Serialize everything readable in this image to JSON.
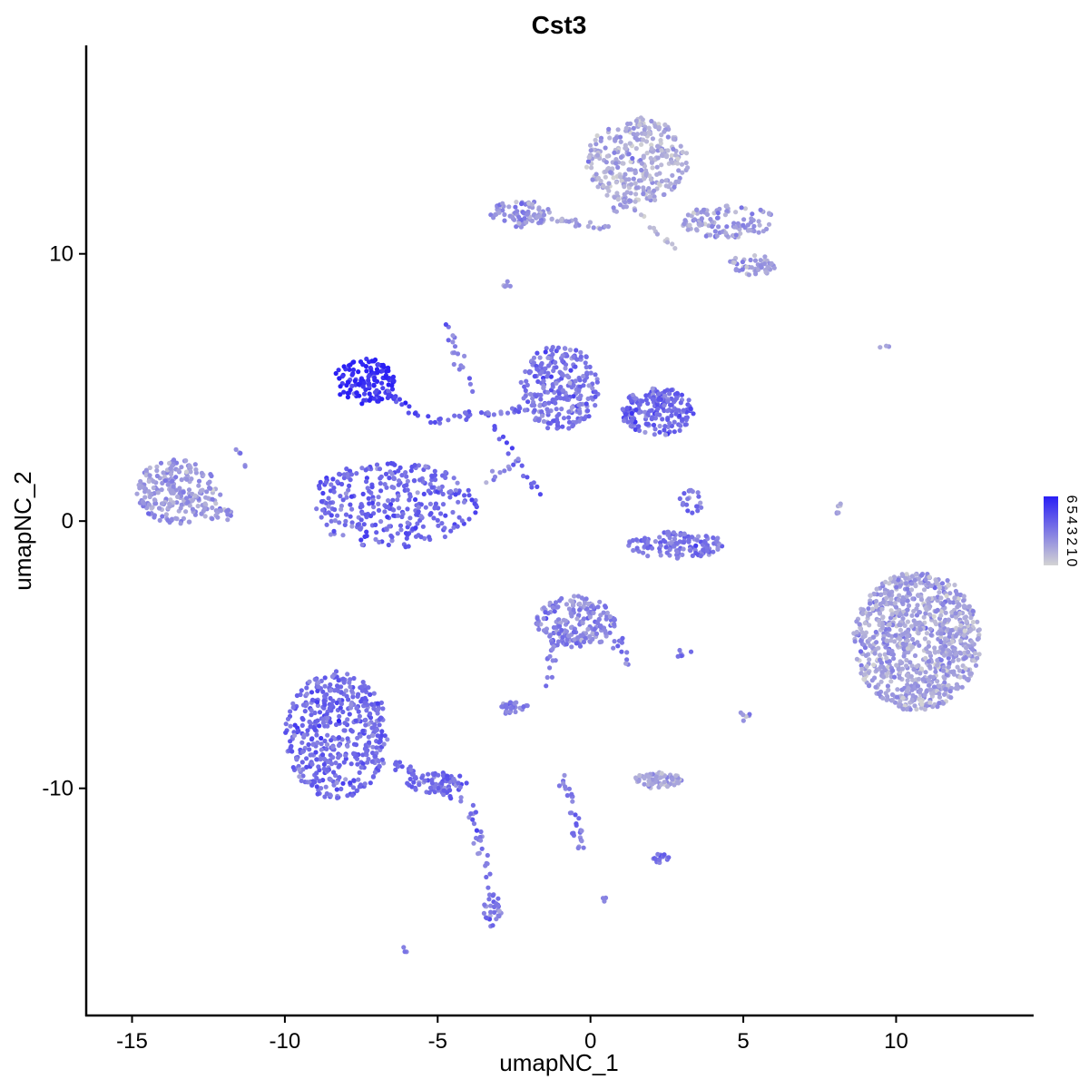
{
  "chart_data": {
    "type": "scatter",
    "title": "Cst3",
    "xlabel": "umapNC_1",
    "ylabel": "umapNC_2",
    "xlim": [
      -16.5,
      14.5
    ],
    "ylim": [
      -18.5,
      17.8
    ],
    "xticks": [
      -15,
      -10,
      -5,
      0,
      5,
      10
    ],
    "yticks": [
      10,
      0,
      -10
    ],
    "grid": false,
    "legend": {
      "placement": "right",
      "type": "colorbar",
      "min": 0,
      "max": 6,
      "low_color": "#d3d3d3",
      "high_color": "#2a1ff5",
      "labels": [
        "6",
        "5",
        "4",
        "3",
        "2",
        "1",
        "0"
      ]
    },
    "clusters": [
      {
        "cx": -13.5,
        "cy": 1.1,
        "rx": 1.4,
        "ry": 1.2,
        "n": 230,
        "expr": 1.9
      },
      {
        "cx": -12.2,
        "cy": 0.3,
        "rx": 0.5,
        "ry": 0.4,
        "n": 20,
        "expr": 1.9
      },
      {
        "cx": -6.5,
        "cy": 0.6,
        "rx": 2.8,
        "ry": 1.6,
        "n": 330,
        "expr": 3.6
      },
      {
        "cx": -7.4,
        "cy": 5.2,
        "rx": 1.0,
        "ry": 0.9,
        "n": 130,
        "expr": 5.6
      },
      {
        "cx": -8.3,
        "cy": -8.0,
        "rx": 1.7,
        "ry": 2.4,
        "n": 480,
        "expr": 3.5
      },
      {
        "cx": -5.0,
        "cy": -9.8,
        "rx": 1.0,
        "ry": 0.4,
        "n": 60,
        "expr": 3.6
      },
      {
        "cx": -3.2,
        "cy": -14.6,
        "rx": 0.3,
        "ry": 0.7,
        "n": 30,
        "expr": 3.0
      },
      {
        "cx": -1.0,
        "cy": 5.0,
        "rx": 1.3,
        "ry": 1.6,
        "n": 260,
        "expr": 3.2
      },
      {
        "cx": 2.2,
        "cy": 4.1,
        "rx": 1.2,
        "ry": 0.9,
        "n": 200,
        "expr": 3.6
      },
      {
        "cx": 2.8,
        "cy": -0.9,
        "rx": 1.6,
        "ry": 0.5,
        "n": 130,
        "expr": 3.0
      },
      {
        "cx": 3.3,
        "cy": 0.8,
        "rx": 0.4,
        "ry": 0.5,
        "n": 20,
        "expr": 3.2
      },
      {
        "cx": -0.5,
        "cy": -3.8,
        "rx": 1.3,
        "ry": 1.0,
        "n": 200,
        "expr": 2.6
      },
      {
        "cx": 1.5,
        "cy": 13.5,
        "rx": 1.7,
        "ry": 1.6,
        "n": 320,
        "expr": 1.3
      },
      {
        "cx": -2.3,
        "cy": 11.5,
        "rx": 1.0,
        "ry": 0.5,
        "n": 80,
        "expr": 2.1
      },
      {
        "cx": 4.5,
        "cy": 11.2,
        "rx": 1.6,
        "ry": 0.6,
        "n": 110,
        "expr": 1.8
      },
      {
        "cx": 5.3,
        "cy": 9.6,
        "rx": 0.8,
        "ry": 0.4,
        "n": 50,
        "expr": 1.8
      },
      {
        "cx": 10.7,
        "cy": -4.5,
        "rx": 2.1,
        "ry": 2.6,
        "n": 900,
        "expr": 1.6
      },
      {
        "cx": 2.2,
        "cy": -9.7,
        "rx": 0.8,
        "ry": 0.3,
        "n": 70,
        "expr": 1.5
      },
      {
        "cx": -2.5,
        "cy": -7.0,
        "rx": 0.5,
        "ry": 0.25,
        "n": 30,
        "expr": 2.7
      },
      {
        "cx": 2.3,
        "cy": -12.6,
        "rx": 0.3,
        "ry": 0.2,
        "n": 15,
        "expr": 3.4
      }
    ],
    "paths": [
      {
        "x1": -11.6,
        "y1": 2.8,
        "x2": -11.0,
        "y2": 1.4,
        "n": 6,
        "expr": 2.0
      },
      {
        "x1": -6.7,
        "y1": 4.8,
        "x2": -5.0,
        "y2": 3.6,
        "n": 20,
        "expr": 4.6
      },
      {
        "x1": -5.0,
        "y1": 3.8,
        "x2": -2.2,
        "y2": 4.2,
        "n": 30,
        "expr": 3.6
      },
      {
        "x1": -4.7,
        "y1": 7.4,
        "x2": -3.8,
        "y2": 4.5,
        "n": 18,
        "expr": 3.2
      },
      {
        "x1": -3.2,
        "y1": 3.6,
        "x2": -1.5,
        "y2": 0.7,
        "n": 18,
        "expr": 4.2
      },
      {
        "x1": -3.5,
        "y1": 1.5,
        "x2": -2.3,
        "y2": 2.3,
        "n": 10,
        "expr": 2.6
      },
      {
        "x1": -6.5,
        "y1": -9.0,
        "x2": -4.2,
        "y2": -10.5,
        "n": 35,
        "expr": 3.4
      },
      {
        "x1": -4.0,
        "y1": -10.5,
        "x2": -3.2,
        "y2": -14.0,
        "n": 25,
        "expr": 2.9
      },
      {
        "x1": -1.2,
        "y1": -4.3,
        "x2": -1.4,
        "y2": -6.3,
        "n": 12,
        "expr": 2.9
      },
      {
        "x1": 0.8,
        "y1": -4.3,
        "x2": 1.2,
        "y2": -5.3,
        "n": 12,
        "expr": 2.8
      },
      {
        "x1": -0.9,
        "y1": -9.3,
        "x2": -0.3,
        "y2": -12.2,
        "n": 30,
        "expr": 3.1
      },
      {
        "x1": 0.8,
        "y1": 11.6,
        "x2": 1.2,
        "y2": 12.2,
        "n": 8,
        "expr": 1.6
      },
      {
        "x1": -2.2,
        "y1": 11.4,
        "x2": 0.5,
        "y2": 11.0,
        "n": 30,
        "expr": 1.8
      },
      {
        "x1": 1.2,
        "y1": 11.8,
        "x2": 3.3,
        "y2": 9.8,
        "n": 14,
        "expr": 1.0
      },
      {
        "x1": 7.8,
        "y1": -0.3,
        "x2": 8.3,
        "y2": 0.8,
        "n": 6,
        "expr": 1.5
      },
      {
        "x1": 2.8,
        "y1": -5.0,
        "x2": 3.2,
        "y2": -5.0,
        "n": 6,
        "expr": 3.3
      },
      {
        "x1": 5.0,
        "y1": -7.0,
        "x2": 5.1,
        "y2": -7.8,
        "n": 6,
        "expr": 1.8
      },
      {
        "x1": -2.9,
        "y1": 8.7,
        "x2": -2.7,
        "y2": 8.9,
        "n": 5,
        "expr": 2.2
      },
      {
        "x1": 9.5,
        "y1": 6.6,
        "x2": 9.7,
        "y2": 6.6,
        "n": 3,
        "expr": 1.8
      },
      {
        "x1": 0.5,
        "y1": -14.1,
        "x2": 0.6,
        "y2": -14.2,
        "n": 3,
        "expr": 2.8
      },
      {
        "x1": -6.2,
        "y1": -16.1,
        "x2": -6.0,
        "y2": -16.0,
        "n": 3,
        "expr": 2.4
      }
    ]
  }
}
